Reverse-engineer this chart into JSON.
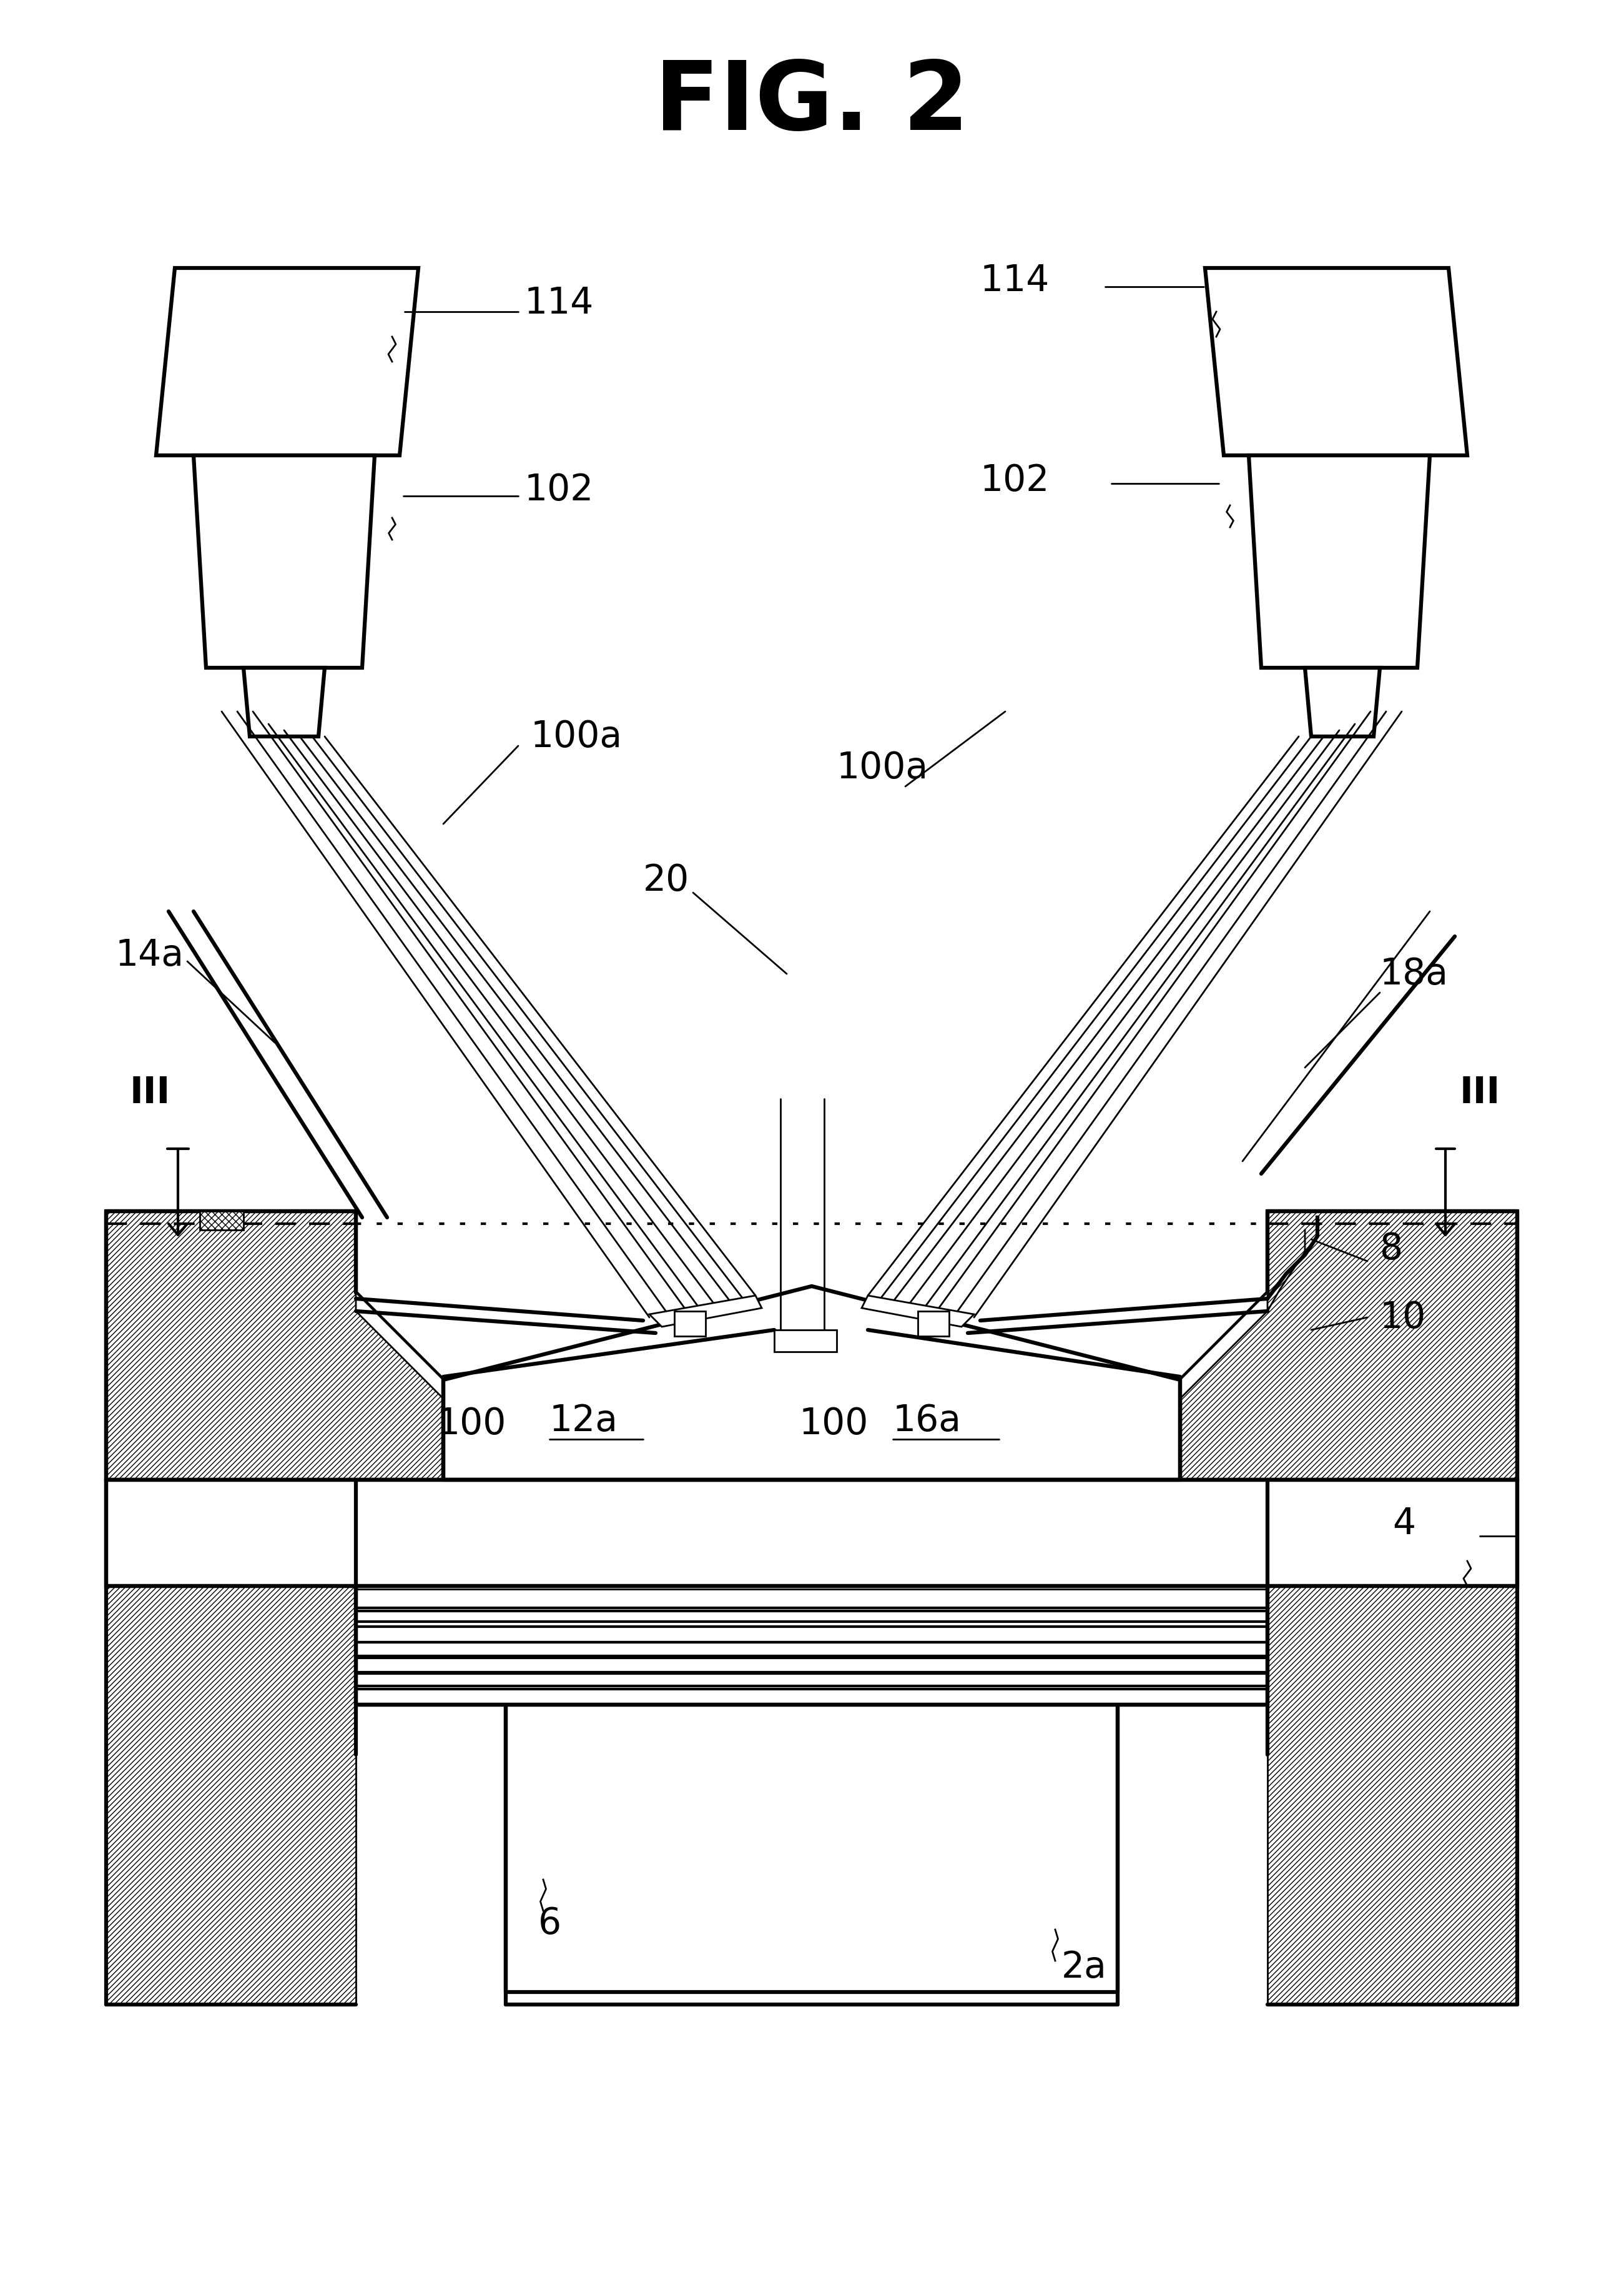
{
  "bg_color": "#ffffff",
  "lw_main": 4.5,
  "lw_med": 3.0,
  "lw_thin": 2.0,
  "lw_thick": 6.0,
  "labels": {
    "fig_title": "FIG. 2",
    "114": "114",
    "102": "102",
    "100a_l": "100a",
    "100a_r": "100a",
    "20": "20",
    "14a": "14a",
    "18a": "18a",
    "III": "III",
    "8": "8",
    "10": "10",
    "12a": "12a",
    "16a": "16a",
    "100_l": "100",
    "100_r": "100",
    "4": "4",
    "6": "6",
    "2a": "2a"
  }
}
